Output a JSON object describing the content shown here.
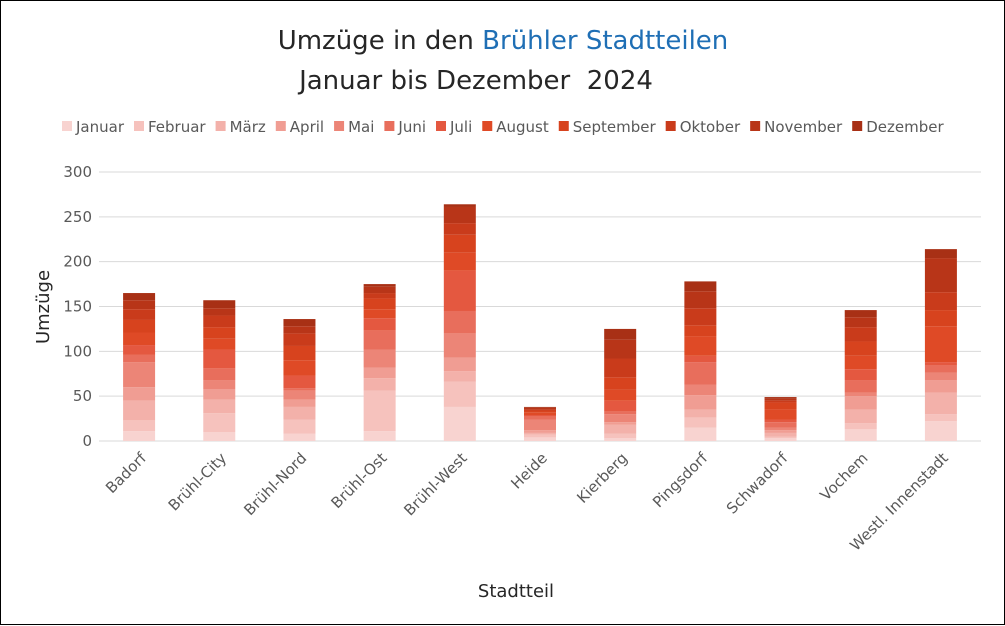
{
  "chart_data": {
    "type": "bar",
    "stacked": true,
    "title_line1_prefix": "Umzüge in den ",
    "title_line1_accent": "Brühler Stadtteilen",
    "title_line2": "Januar bis Dezember  2024",
    "xlabel": "Stadtteil",
    "ylabel": "Umzüge",
    "ylim": [
      0,
      300
    ],
    "yticks": [
      "0",
      "50",
      "100",
      "150",
      "200",
      "250",
      "300"
    ],
    "grid": true,
    "legend_position": "top",
    "categories": [
      "Badorf",
      "Brühl-City",
      "Brühl-Nord",
      "Brühl-Ost",
      "Brühl-West",
      "Heide",
      "Kierberg",
      "Pingsdorf",
      "Schwadorf",
      "Vochem",
      "Westl. Innenstadt"
    ],
    "series": [
      {
        "name": "Januar",
        "color": "#f8d3d0",
        "values": [
          11,
          10,
          8,
          11,
          38,
          4,
          3,
          15,
          3,
          13,
          22
        ]
      },
      {
        "name": "Februar",
        "color": "#f6c2bd",
        "values": [
          12,
          21,
          16,
          45,
          28,
          3,
          5,
          11,
          2,
          7,
          8
        ]
      },
      {
        "name": "März",
        "color": "#f3b1aa",
        "values": [
          22,
          15,
          14,
          14,
          12,
          2,
          10,
          9,
          4,
          15,
          24
        ]
      },
      {
        "name": "April",
        "color": "#f09d93",
        "values": [
          15,
          12,
          8,
          12,
          15,
          3,
          3,
          16,
          3,
          15,
          14
        ]
      },
      {
        "name": "Mai",
        "color": "#ec8577",
        "values": [
          28,
          10,
          10,
          20,
          27,
          12,
          9,
          12,
          3,
          4,
          8
        ]
      },
      {
        "name": "Juni",
        "color": "#e86e5c",
        "values": [
          8,
          13,
          3,
          21,
          25,
          3,
          3,
          25,
          6,
          14,
          8
        ]
      },
      {
        "name": "Juli",
        "color": "#e45840",
        "values": [
          11,
          21,
          14,
          14,
          45,
          2,
          12,
          7,
          3,
          12,
          4
        ]
      },
      {
        "name": "August",
        "color": "#df4a26",
        "values": [
          14,
          12,
          17,
          10,
          20,
          3,
          12,
          22,
          11,
          15,
          40
        ]
      },
      {
        "name": "September",
        "color": "#d7431e",
        "values": [
          14,
          13,
          16,
          12,
          20,
          2,
          14,
          12,
          8,
          16,
          18
        ]
      },
      {
        "name": "Oktober",
        "color": "#c93b1b",
        "values": [
          12,
          13,
          14,
          6,
          13,
          1,
          21,
          19,
          2,
          16,
          20
        ]
      },
      {
        "name": "November",
        "color": "#b83518",
        "values": [
          10,
          8,
          8,
          7,
          18,
          2,
          21,
          19,
          2,
          11,
          38
        ]
      },
      {
        "name": "Dezember",
        "color": "#a83015",
        "values": [
          8,
          9,
          8,
          3,
          3,
          1,
          12,
          11,
          2,
          8,
          10
        ]
      }
    ]
  }
}
